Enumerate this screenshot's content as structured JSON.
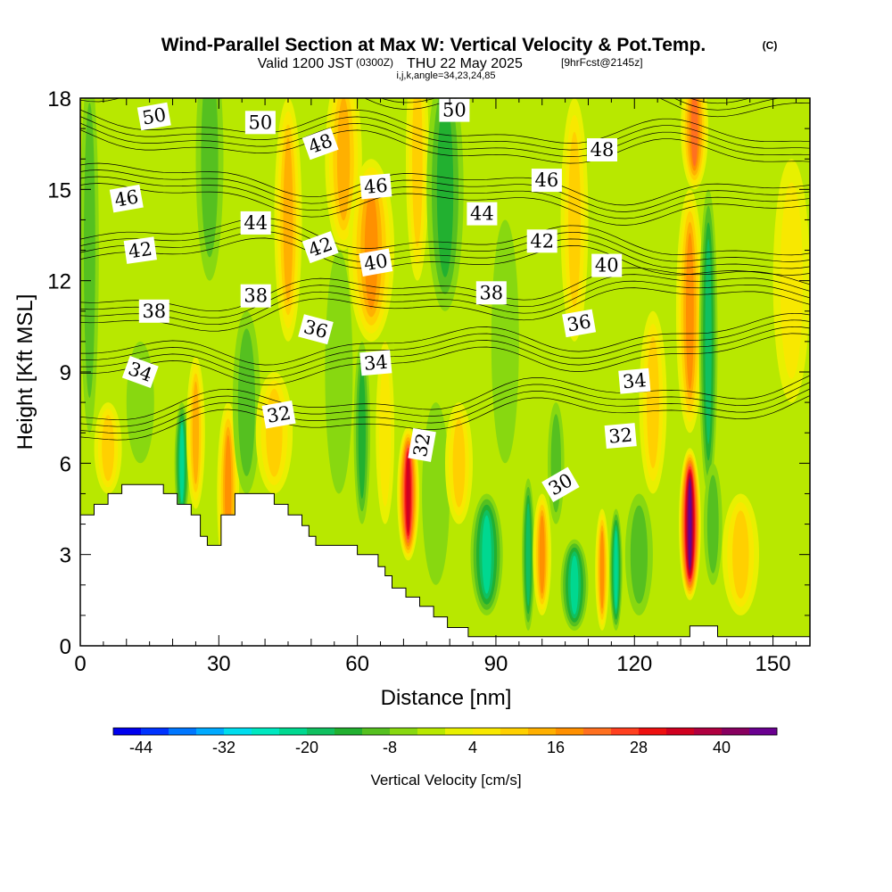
{
  "title": {
    "main": "Wind-Parallel Section at Max W: Vertical Velocity & Pot.Temp.",
    "copyright": "(C)",
    "valid_prefix": "Valid 1200 JST",
    "valid_z": "(0300Z)",
    "valid_suffix": "THU 22 May 2025",
    "forecast": "[9hrFcst@2145z]",
    "indices": "i,j,k,angle=34,23,24,85"
  },
  "chart_data": {
    "type": "heatmap",
    "xlabel": "Distance [nm]",
    "ylabel": "Height [Kft MSL]",
    "xlim": [
      0,
      158
    ],
    "ylim": [
      0,
      18
    ],
    "x_ticks": [
      0,
      30,
      60,
      90,
      120,
      150
    ],
    "y_ticks": [
      0,
      3,
      6,
      9,
      12,
      15,
      18
    ],
    "colorbar": {
      "label": "Vertical Velocity [cm/s]",
      "tick_values": [
        -44,
        -32,
        -20,
        -8,
        4,
        16,
        28,
        40
      ],
      "tick_labels": [
        "-44",
        "-32",
        "-20",
        "-8",
        "4",
        "16",
        "28",
        "40"
      ],
      "levels": [
        -48,
        -44,
        -40,
        -36,
        -32,
        -28,
        -24,
        -20,
        -16,
        -12,
        -8,
        -4,
        0,
        4,
        8,
        12,
        16,
        20,
        24,
        28,
        32,
        36,
        40,
        44,
        48
      ],
      "colors": [
        "#0000ee",
        "#0033ff",
        "#0077ff",
        "#00aaff",
        "#00ddee",
        "#00e8c0",
        "#00d890",
        "#10c060",
        "#22b030",
        "#55c020",
        "#88d810",
        "#b8e800",
        "#e8f000",
        "#f8e800",
        "#ffd000",
        "#ffb000",
        "#ff9000",
        "#ff7020",
        "#ff4020",
        "#ee1010",
        "#d00020",
        "#b00040",
        "#880060",
        "#6a0090"
      ]
    },
    "vertical_velocity_columns": [
      {
        "x": 2,
        "width": 2.0,
        "z_center": 13,
        "z_halfwidth": 6,
        "w": -12
      },
      {
        "x": 6,
        "width": 3.0,
        "z_center": 6.5,
        "z_halfwidth": 1.5,
        "w": 10
      },
      {
        "x": 13,
        "width": 3.0,
        "z_center": 8,
        "z_halfwidth": 2,
        "w": -8
      },
      {
        "x": 22,
        "width": 1.6,
        "z_center": 6,
        "z_halfwidth": 2,
        "w": -22
      },
      {
        "x": 25,
        "width": 2.0,
        "z_center": 7,
        "z_halfwidth": 2.5,
        "w": 14
      },
      {
        "x": 28,
        "width": 3.0,
        "z_center": 16,
        "z_halfwidth": 4,
        "w": -12
      },
      {
        "x": 32,
        "width": 2.4,
        "z_center": 5,
        "z_halfwidth": 3,
        "w": 16
      },
      {
        "x": 36,
        "width": 3.0,
        "z_center": 8,
        "z_halfwidth": 3,
        "w": -10
      },
      {
        "x": 42,
        "width": 4.0,
        "z_center": 7,
        "z_halfwidth": 2,
        "w": 10
      },
      {
        "x": 45,
        "width": 3.0,
        "z_center": 14,
        "z_halfwidth": 4,
        "w": 12
      },
      {
        "x": 56,
        "width": 3.0,
        "z_center": 9,
        "z_halfwidth": 4,
        "w": -8
      },
      {
        "x": 57,
        "width": 4.0,
        "z_center": 16,
        "z_halfwidth": 3,
        "w": 14
      },
      {
        "x": 61,
        "width": 1.8,
        "z_center": 7,
        "z_halfwidth": 3,
        "w": -16
      },
      {
        "x": 63,
        "width": 5.0,
        "z_center": 13,
        "z_halfwidth": 3,
        "w": 16
      },
      {
        "x": 66,
        "width": 2.0,
        "z_center": 7,
        "z_halfwidth": 3,
        "w": 6
      },
      {
        "x": 71,
        "width": 2.4,
        "z_center": 5,
        "z_halfwidth": 2.2,
        "w": 32
      },
      {
        "x": 73,
        "width": 2.5,
        "z_center": 16,
        "z_halfwidth": 4,
        "w": 10
      },
      {
        "x": 77,
        "width": 3.0,
        "z_center": 5,
        "z_halfwidth": 3,
        "w": -8
      },
      {
        "x": 79,
        "width": 4.0,
        "z_center": 15,
        "z_halfwidth": 4,
        "w": -14
      },
      {
        "x": 82,
        "width": 3.0,
        "z_center": 6,
        "z_halfwidth": 2,
        "w": 10
      },
      {
        "x": 88,
        "width": 3.5,
        "z_center": 3,
        "z_halfwidth": 2,
        "w": -24
      },
      {
        "x": 92,
        "width": 3.0,
        "z_center": 10,
        "z_halfwidth": 4,
        "w": -8
      },
      {
        "x": 97,
        "width": 1.4,
        "z_center": 3,
        "z_halfwidth": 2.5,
        "w": -20
      },
      {
        "x": 100,
        "width": 2.0,
        "z_center": 3,
        "z_halfwidth": 2,
        "w": 16
      },
      {
        "x": 103,
        "width": 1.8,
        "z_center": 6,
        "z_halfwidth": 2,
        "w": -12
      },
      {
        "x": 107,
        "width": 3.0,
        "z_center": 2,
        "z_halfwidth": 1.5,
        "w": -24
      },
      {
        "x": 107,
        "width": 3.0,
        "z_center": 14,
        "z_halfwidth": 4,
        "w": 10
      },
      {
        "x": 113,
        "width": 1.5,
        "z_center": 2.5,
        "z_halfwidth": 2,
        "w": 16
      },
      {
        "x": 116,
        "width": 1.4,
        "z_center": 2.5,
        "z_halfwidth": 2,
        "w": -24
      },
      {
        "x": 121,
        "width": 3.0,
        "z_center": 3,
        "z_halfwidth": 2,
        "w": -10
      },
      {
        "x": 124,
        "width": 3.0,
        "z_center": 8,
        "z_halfwidth": 3,
        "w": 10
      },
      {
        "x": 132,
        "width": 2.4,
        "z_center": 4,
        "z_halfwidth": 2.5,
        "w": 44
      },
      {
        "x": 132,
        "width": 3.0,
        "z_center": 11,
        "z_halfwidth": 4,
        "w": 16
      },
      {
        "x": 133,
        "width": 3.0,
        "z_center": 17,
        "z_halfwidth": 2,
        "w": 20
      },
      {
        "x": 136,
        "width": 2.0,
        "z_center": 10,
        "z_halfwidth": 5,
        "w": -20
      },
      {
        "x": 137,
        "width": 2.0,
        "z_center": 4,
        "z_halfwidth": 2,
        "w": -12
      },
      {
        "x": 143,
        "width": 4.0,
        "z_center": 3,
        "z_halfwidth": 2,
        "w": 10
      },
      {
        "x": 148,
        "width": 4.0,
        "z_center": 9,
        "z_halfwidth": 4,
        "w": -4
      },
      {
        "x": 154,
        "width": 4.0,
        "z_center": 12,
        "z_halfwidth": 4,
        "w": 6
      }
    ],
    "potential_temperature_contours": [
      30,
      32,
      34,
      36,
      38,
      40,
      42,
      44,
      46,
      48,
      50
    ],
    "contour_labels": [
      {
        "text": "50",
        "x": 16,
        "z": 17.4,
        "angle": -10
      },
      {
        "text": "50",
        "x": 39,
        "z": 17.2,
        "angle": 0
      },
      {
        "text": "50",
        "x": 81,
        "z": 17.6,
        "angle": 0
      },
      {
        "text": "48",
        "x": 52,
        "z": 16.5,
        "angle": -20
      },
      {
        "text": "48",
        "x": 113,
        "z": 16.3,
        "angle": 0
      },
      {
        "text": "46",
        "x": 10,
        "z": 14.7,
        "angle": -10
      },
      {
        "text": "46",
        "x": 64,
        "z": 15.1,
        "angle": -5
      },
      {
        "text": "46",
        "x": 101,
        "z": 15.3,
        "angle": 0
      },
      {
        "text": "44",
        "x": 38,
        "z": 13.9,
        "angle": 0
      },
      {
        "text": "44",
        "x": 87,
        "z": 14.2,
        "angle": 0
      },
      {
        "text": "42",
        "x": 13,
        "z": 13.0,
        "angle": -8
      },
      {
        "text": "42",
        "x": 52,
        "z": 13.1,
        "angle": -20
      },
      {
        "text": "42",
        "x": 100,
        "z": 13.3,
        "angle": 0
      },
      {
        "text": "40",
        "x": 64,
        "z": 12.6,
        "angle": -10
      },
      {
        "text": "40",
        "x": 114,
        "z": 12.5,
        "angle": 0
      },
      {
        "text": "38",
        "x": 16,
        "z": 11.0,
        "angle": 0
      },
      {
        "text": "38",
        "x": 38,
        "z": 11.5,
        "angle": 0
      },
      {
        "text": "38",
        "x": 89,
        "z": 11.6,
        "angle": 0
      },
      {
        "text": "36",
        "x": 51,
        "z": 10.4,
        "angle": 15
      },
      {
        "text": "36",
        "x": 108,
        "z": 10.6,
        "angle": -10
      },
      {
        "text": "34",
        "x": 13,
        "z": 9.0,
        "angle": 20
      },
      {
        "text": "34",
        "x": 64,
        "z": 9.3,
        "angle": -5
      },
      {
        "text": "34",
        "x": 120,
        "z": 8.7,
        "angle": -5
      },
      {
        "text": "32",
        "x": 43,
        "z": 7.6,
        "angle": -10
      },
      {
        "text": "32",
        "x": 74,
        "z": 6.6,
        "angle": -80
      },
      {
        "text": "32",
        "x": 117,
        "z": 6.9,
        "angle": -5
      },
      {
        "text": "30",
        "x": 104,
        "z": 5.3,
        "angle": -30
      }
    ],
    "terrain_profile": [
      {
        "x": 0,
        "z": 4.3
      },
      {
        "x": 3,
        "z": 4.3
      },
      {
        "x": 3,
        "z": 4.65
      },
      {
        "x": 6,
        "z": 4.65
      },
      {
        "x": 6,
        "z": 5.0
      },
      {
        "x": 9,
        "z": 5.0
      },
      {
        "x": 9,
        "z": 5.3
      },
      {
        "x": 18,
        "z": 5.3
      },
      {
        "x": 18,
        "z": 5.0
      },
      {
        "x": 21,
        "z": 5.0
      },
      {
        "x": 21,
        "z": 4.65
      },
      {
        "x": 24,
        "z": 4.65
      },
      {
        "x": 24,
        "z": 4.3
      },
      {
        "x": 26,
        "z": 4.3
      },
      {
        "x": 26,
        "z": 3.6
      },
      {
        "x": 27.5,
        "z": 3.6
      },
      {
        "x": 27.5,
        "z": 3.3
      },
      {
        "x": 30.5,
        "z": 3.3
      },
      {
        "x": 30.5,
        "z": 4.3
      },
      {
        "x": 33.5,
        "z": 4.3
      },
      {
        "x": 33.5,
        "z": 5.0
      },
      {
        "x": 42,
        "z": 5.0
      },
      {
        "x": 42,
        "z": 4.65
      },
      {
        "x": 45,
        "z": 4.65
      },
      {
        "x": 45,
        "z": 4.3
      },
      {
        "x": 48,
        "z": 4.3
      },
      {
        "x": 48,
        "z": 3.95
      },
      {
        "x": 49.5,
        "z": 3.95
      },
      {
        "x": 49.5,
        "z": 3.6
      },
      {
        "x": 51,
        "z": 3.6
      },
      {
        "x": 51,
        "z": 3.3
      },
      {
        "x": 60,
        "z": 3.3
      },
      {
        "x": 60,
        "z": 3.0
      },
      {
        "x": 64.5,
        "z": 3.0
      },
      {
        "x": 64.5,
        "z": 2.6
      },
      {
        "x": 66,
        "z": 2.6
      },
      {
        "x": 66,
        "z": 2.3
      },
      {
        "x": 67.5,
        "z": 2.3
      },
      {
        "x": 67.5,
        "z": 1.9
      },
      {
        "x": 70.5,
        "z": 1.9
      },
      {
        "x": 70.5,
        "z": 1.6
      },
      {
        "x": 73.5,
        "z": 1.6
      },
      {
        "x": 73.5,
        "z": 1.3
      },
      {
        "x": 76.5,
        "z": 1.3
      },
      {
        "x": 76.5,
        "z": 0.95
      },
      {
        "x": 79.5,
        "z": 0.95
      },
      {
        "x": 79.5,
        "z": 0.6
      },
      {
        "x": 84,
        "z": 0.6
      },
      {
        "x": 84,
        "z": 0.3
      },
      {
        "x": 132,
        "z": 0.3
      },
      {
        "x": 132,
        "z": 0.65
      },
      {
        "x": 138,
        "z": 0.65
      },
      {
        "x": 138,
        "z": 0.3
      },
      {
        "x": 158,
        "z": 0.3
      }
    ]
  }
}
